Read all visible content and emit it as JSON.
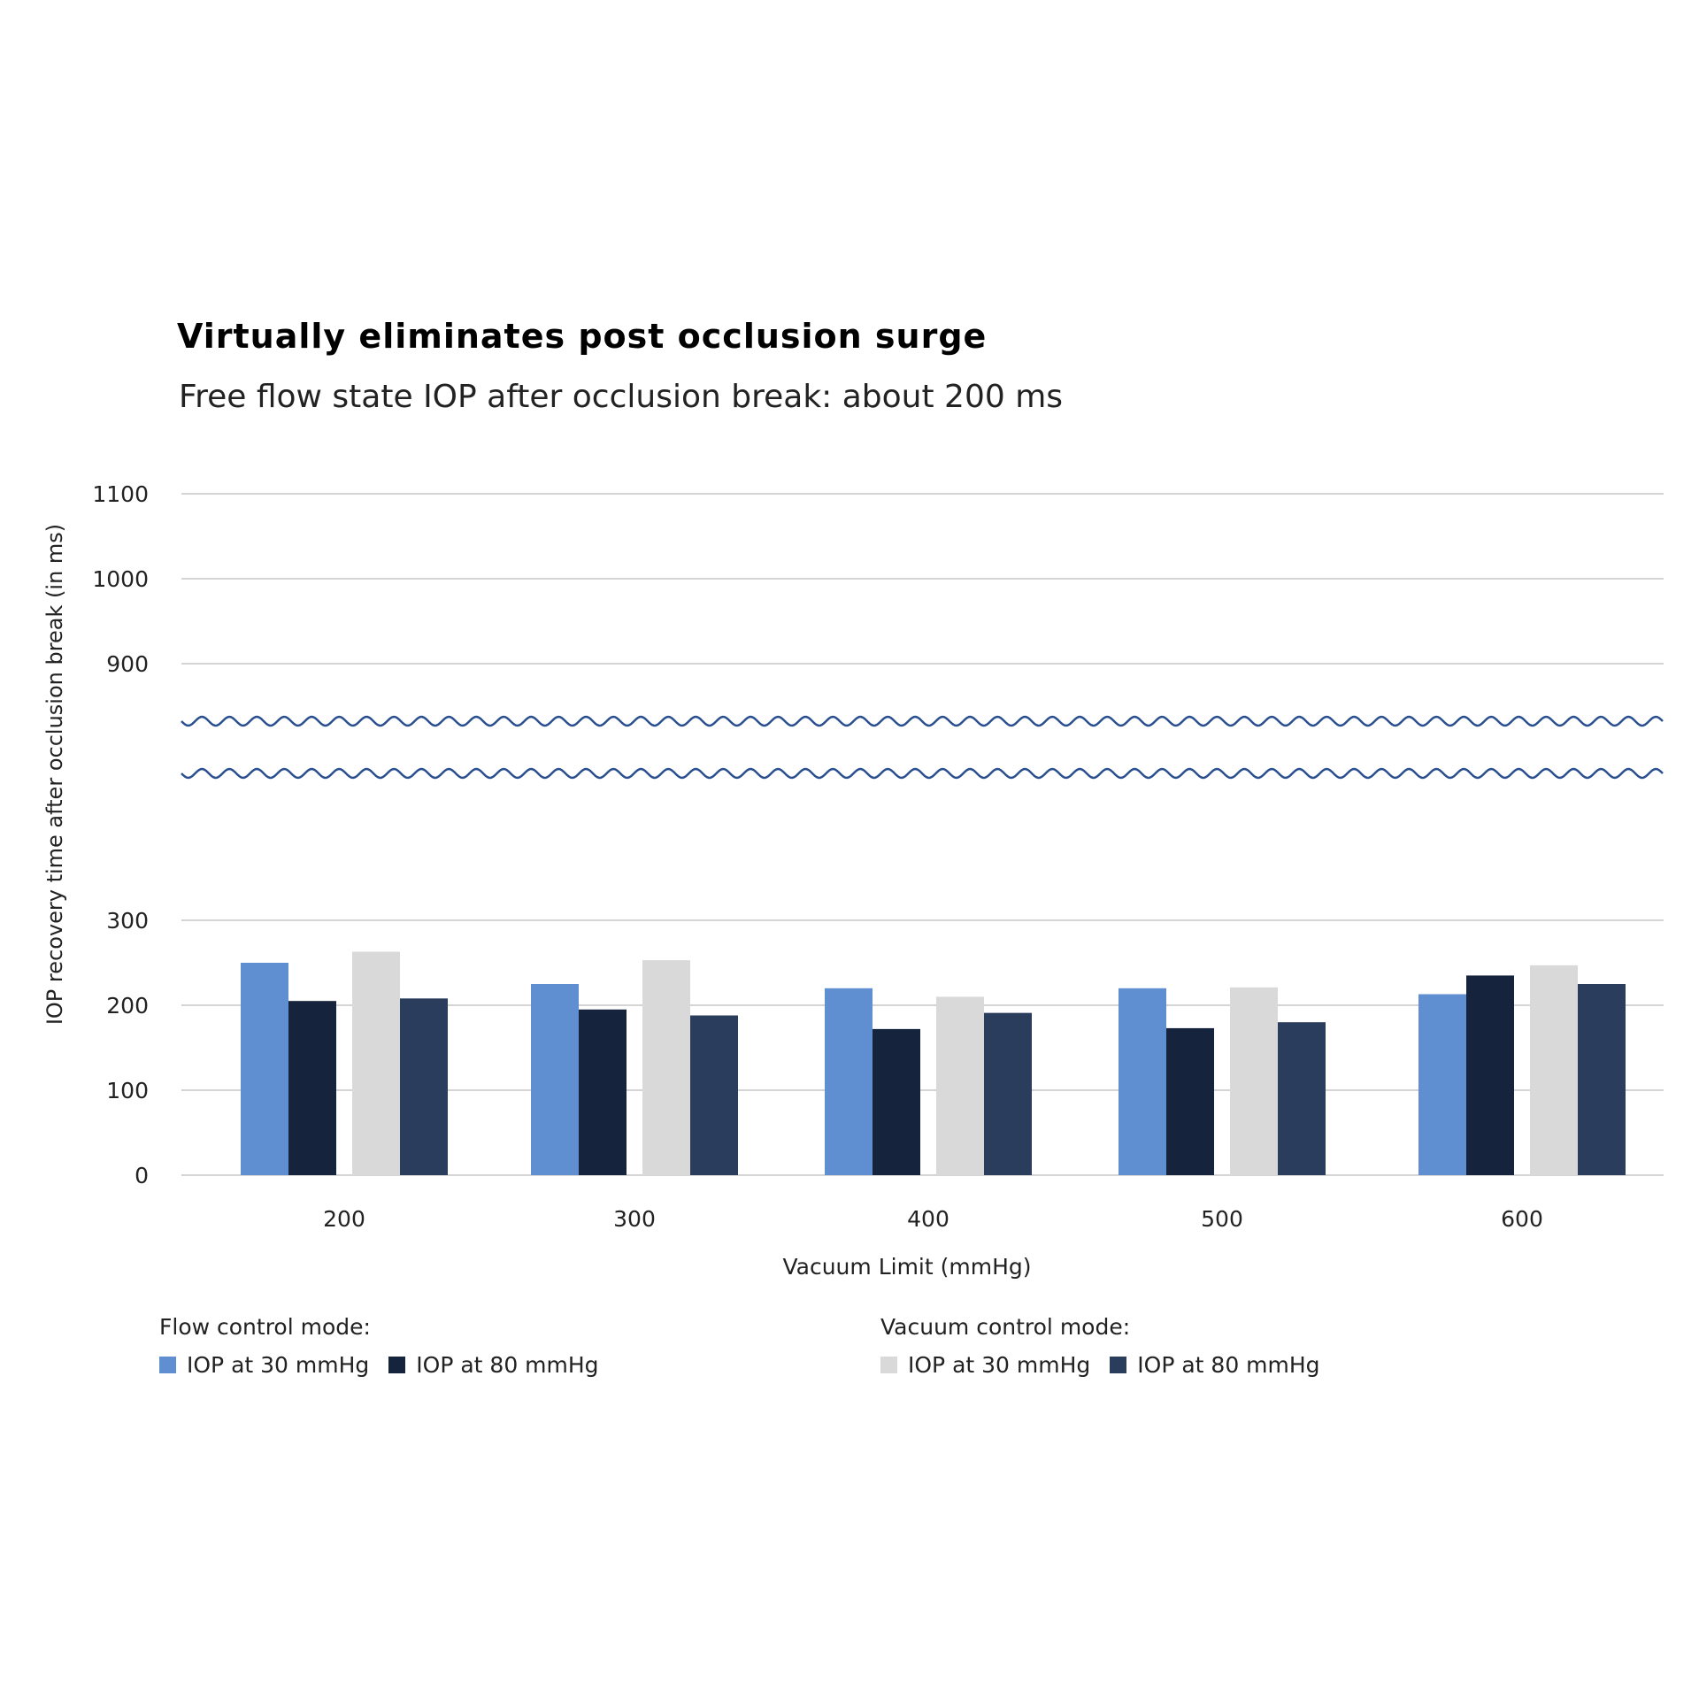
{
  "chart_data": {
    "type": "bar",
    "title": "Virtually eliminates post occlusion surge",
    "subtitle": "Free flow state IOP after occlusion break: about 200 ms",
    "xlabel": "Vacuum Limit (mmHg)",
    "ylabel": "IOP recovery time after occlusion break  (in ms)",
    "categories": [
      "200",
      "300",
      "400",
      "500",
      "600"
    ],
    "axis_break": {
      "lower_range": [
        0,
        300
      ],
      "upper_range": [
        900,
        1100
      ]
    },
    "y_ticks": [
      "0",
      "100",
      "200",
      "300",
      "900",
      "1000",
      "1100"
    ],
    "grid": true,
    "legend_position": "bottom",
    "legend_groups": [
      {
        "heading": "Flow control mode:",
        "series_indices": [
          0,
          1
        ]
      },
      {
        "heading": "Vacuum control mode:",
        "series_indices": [
          2,
          3
        ]
      }
    ],
    "series": [
      {
        "name": "IOP at 30 mmHg",
        "group": "Flow control mode",
        "color": "#5f8fd0",
        "values": [
          250,
          225,
          220,
          220,
          213
        ]
      },
      {
        "name": "IOP at 80 mmHg",
        "group": "Flow control mode",
        "color": "#15233d",
        "values": [
          205,
          195,
          172,
          173,
          235
        ]
      },
      {
        "name": "IOP at 30 mmHg",
        "group": "Vacuum control mode",
        "color": "#d9d9d9",
        "values": [
          263,
          253,
          210,
          221,
          247
        ]
      },
      {
        "name": "IOP at 80 mmHg",
        "group": "Vacuum control mode",
        "color": "#2b3d5c",
        "values": [
          208,
          188,
          191,
          180,
          225
        ]
      }
    ],
    "colors": {
      "axis_break_wave": "#2a4f8f",
      "gridline": "#d4d4d4"
    }
  }
}
